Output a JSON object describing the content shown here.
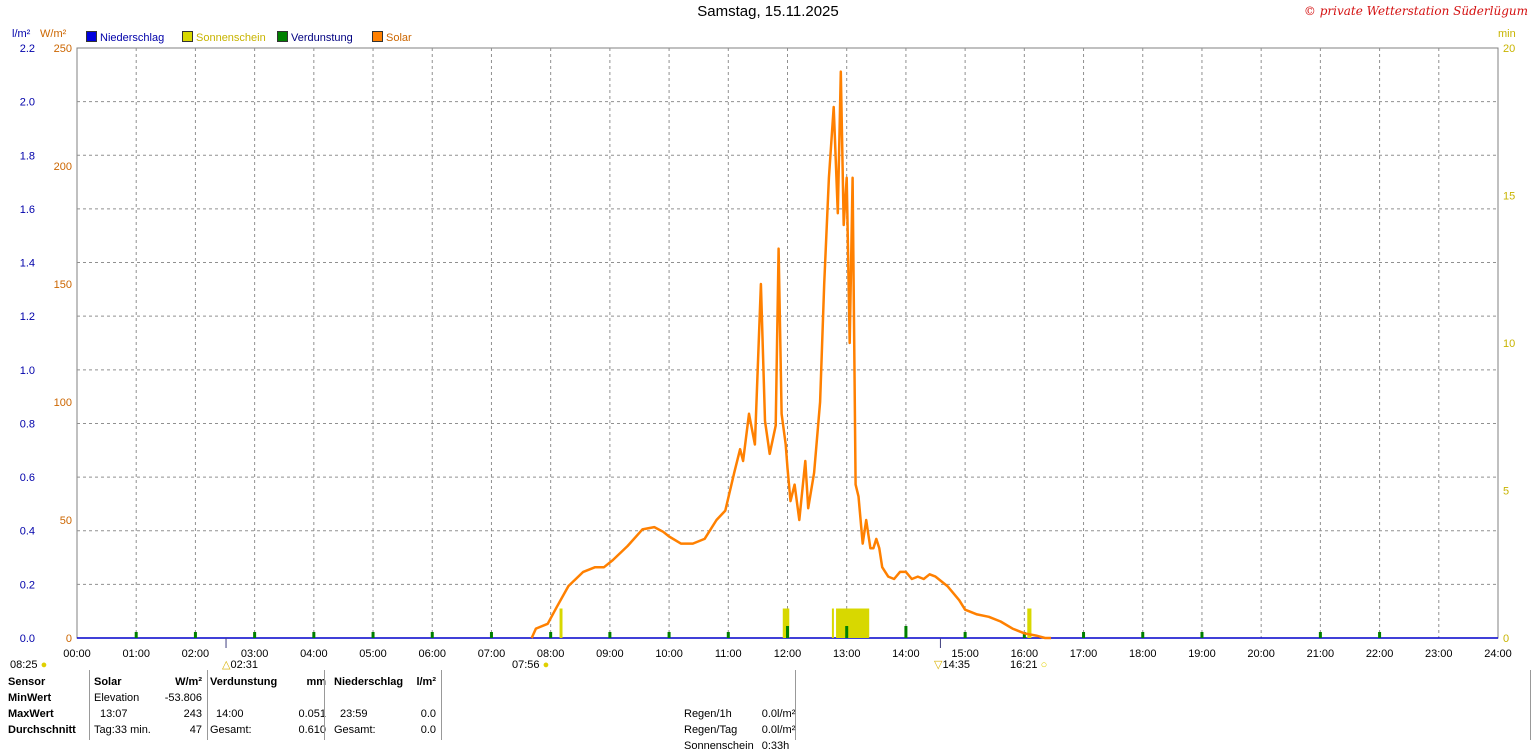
{
  "title": "Samstag, 15.11.2025",
  "credit": "© private Wetterstation Süderlügum",
  "legend": [
    {
      "label": "Niederschlag",
      "color": "#0000dd",
      "text_color": "#0000aa"
    },
    {
      "label": "Sonnenschein",
      "color": "#d8d800",
      "text_color": "#c8b400"
    },
    {
      "label": "Verdunstung",
      "color": "#008000",
      "text_color": "#000080"
    },
    {
      "label": "Solar",
      "color": "#ff8000",
      "text_color": "#cc6600"
    }
  ],
  "axis_units": {
    "rain": "l/m²",
    "solar": "W/m²",
    "sun": "min"
  },
  "sun_events": {
    "sunrise": "08:25",
    "sunrise_az": "07:56",
    "sunset": "16:21",
    "min_time": "02:31",
    "max_time": "14:35"
  },
  "stats": {
    "sensor_hdr": "Sensor",
    "solar_hdr": "Solar",
    "solar_unit": "W/m²",
    "evap_hdr": "Verdunstung",
    "evap_unit": "mm",
    "rain_hdr": "Niederschlag",
    "rain_unit": "l/m²",
    "row_min": "MinWert",
    "row_max": "MaxWert",
    "row_avg": "Durchschnitt",
    "elev_label": "Elevation",
    "elev_value": "-53.806",
    "solar_max_time": "13:07",
    "solar_max": "243",
    "solar_avg_label": "Tag:33 min.",
    "solar_avg": "47",
    "evap_max_time": "14:00",
    "evap_max": "0.051",
    "evap_total_label": "Gesamt:",
    "evap_total": "0.610",
    "rain_max_time": "23:59",
    "rain_max": "0.0",
    "rain_total_label": "Gesamt:",
    "rain_total": "0.0",
    "regen1h_label": "Regen/1h",
    "regen1h": "0.0l/m²",
    "regentag_label": "Regen/Tag",
    "regentag": "0.0l/m²",
    "sun_label": "Sonnenschein",
    "sun_value": "0:33h"
  },
  "chart_data": {
    "type": "line",
    "x_unit": "hour of day",
    "x_range": [
      0,
      24
    ],
    "x_ticks": [
      "00:00",
      "01:00",
      "02:00",
      "03:00",
      "04:00",
      "05:00",
      "06:00",
      "07:00",
      "08:00",
      "09:00",
      "10:00",
      "11:00",
      "12:00",
      "13:00",
      "14:00",
      "15:00",
      "16:00",
      "17:00",
      "18:00",
      "19:00",
      "20:00",
      "21:00",
      "22:00",
      "23:00",
      "24:00"
    ],
    "y_left_rain": {
      "label": "l/m²",
      "range": [
        0,
        2.2
      ],
      "ticks": [
        "0.0",
        "0.2",
        "0.4",
        "0.6",
        "0.8",
        "1.0",
        "1.2",
        "1.4",
        "1.6",
        "1.8",
        "2.0",
        "2.2"
      ],
      "color": "#0000aa"
    },
    "y_left_solar": {
      "label": "W/m²",
      "range": [
        0,
        250
      ],
      "ticks": [
        "0",
        "50",
        "100",
        "150",
        "200",
        "250"
      ],
      "color": "#cc6600"
    },
    "y_right_sun": {
      "label": "min",
      "range": [
        0,
        20
      ],
      "ticks": [
        "0",
        "5",
        "10",
        "15",
        "20"
      ],
      "color": "#c8b400"
    },
    "grid": true,
    "series": [
      {
        "name": "Solar",
        "color": "#ff8000",
        "x": [
          7.68,
          7.75,
          7.95,
          8.1,
          8.3,
          8.55,
          8.75,
          8.9,
          9.05,
          9.3,
          9.55,
          9.75,
          9.9,
          10.0,
          10.2,
          10.4,
          10.6,
          10.8,
          10.95,
          11.1,
          11.2,
          11.25,
          11.35,
          11.45,
          11.55,
          11.62,
          11.7,
          11.8,
          11.85,
          11.9,
          11.97,
          12.0,
          12.05,
          12.12,
          12.2,
          12.3,
          12.35,
          12.45,
          12.55,
          12.62,
          12.7,
          12.78,
          12.85,
          12.9,
          12.95,
          13.0,
          13.05,
          13.1,
          13.15,
          13.2,
          13.27,
          13.33,
          13.4,
          13.45,
          13.5,
          13.55,
          13.6,
          13.7,
          13.8,
          13.9,
          14.0,
          14.1,
          14.2,
          14.3,
          14.4,
          14.5,
          14.7,
          14.9,
          15.0,
          15.2,
          15.4,
          15.6,
          15.8,
          16.0,
          16.2,
          16.35,
          16.45
        ],
        "y": [
          0,
          4,
          6,
          13,
          22,
          28,
          30,
          30,
          33,
          39,
          46,
          47,
          45,
          43,
          40,
          40,
          42,
          50,
          54,
          70,
          80,
          75,
          95,
          82,
          150,
          92,
          78,
          90,
          165,
          95,
          82,
          72,
          58,
          65,
          50,
          75,
          55,
          70,
          100,
          150,
          195,
          225,
          180,
          240,
          175,
          195,
          125,
          195,
          65,
          60,
          40,
          50,
          38,
          38,
          42,
          38,
          30,
          26,
          25,
          28,
          28,
          25,
          26,
          25,
          27,
          26,
          22,
          16,
          12,
          10,
          9,
          7,
          4,
          2,
          1,
          0,
          0
        ]
      },
      {
        "name": "Sonnenschein",
        "color": "#d8d800",
        "bars_hours": [
          [
            8.15,
            8.2
          ],
          [
            11.92,
            12.03
          ],
          [
            12.75,
            12.78
          ],
          [
            12.82,
            13.38
          ],
          [
            16.05,
            16.12
          ]
        ],
        "value_min": 1
      }
    ],
    "evaporation_marks": [
      "01:00",
      "02:00",
      "03:00",
      "04:00",
      "05:00",
      "06:00",
      "07:00",
      "08:00",
      "09:00",
      "10:00",
      "11:00",
      "12:00",
      "13:00",
      "14:00",
      "15:00",
      "16:00",
      "17:00",
      "18:00",
      "19:00",
      "21:00",
      "22:00"
    ]
  }
}
